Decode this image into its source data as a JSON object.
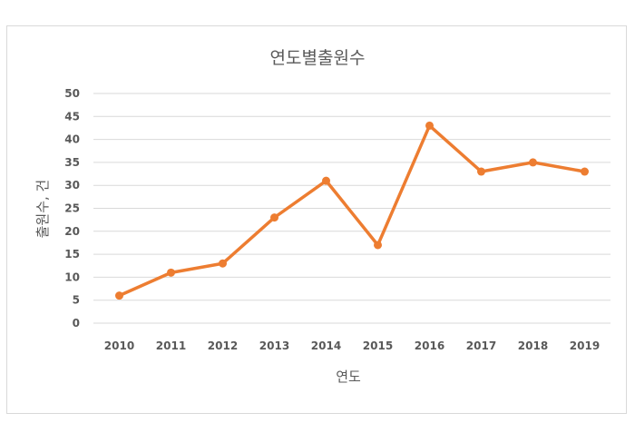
{
  "chart_data": {
    "type": "line",
    "title": "연도별출원수",
    "xlabel": "연도",
    "ylabel": "출원수, 건",
    "categories": [
      "2010",
      "2011",
      "2012",
      "2013",
      "2014",
      "2015",
      "2016",
      "2017",
      "2018",
      "2019"
    ],
    "series": [
      {
        "values": [
          6,
          11,
          13,
          23,
          31,
          17,
          43,
          33,
          35,
          33
        ],
        "color": "#ed7d31"
      }
    ],
    "ylim": [
      0,
      50
    ],
    "yticks": [
      0,
      5,
      10,
      15,
      20,
      25,
      30,
      35,
      40,
      45,
      50
    ],
    "grid": true,
    "markers": true,
    "legend": "none"
  }
}
